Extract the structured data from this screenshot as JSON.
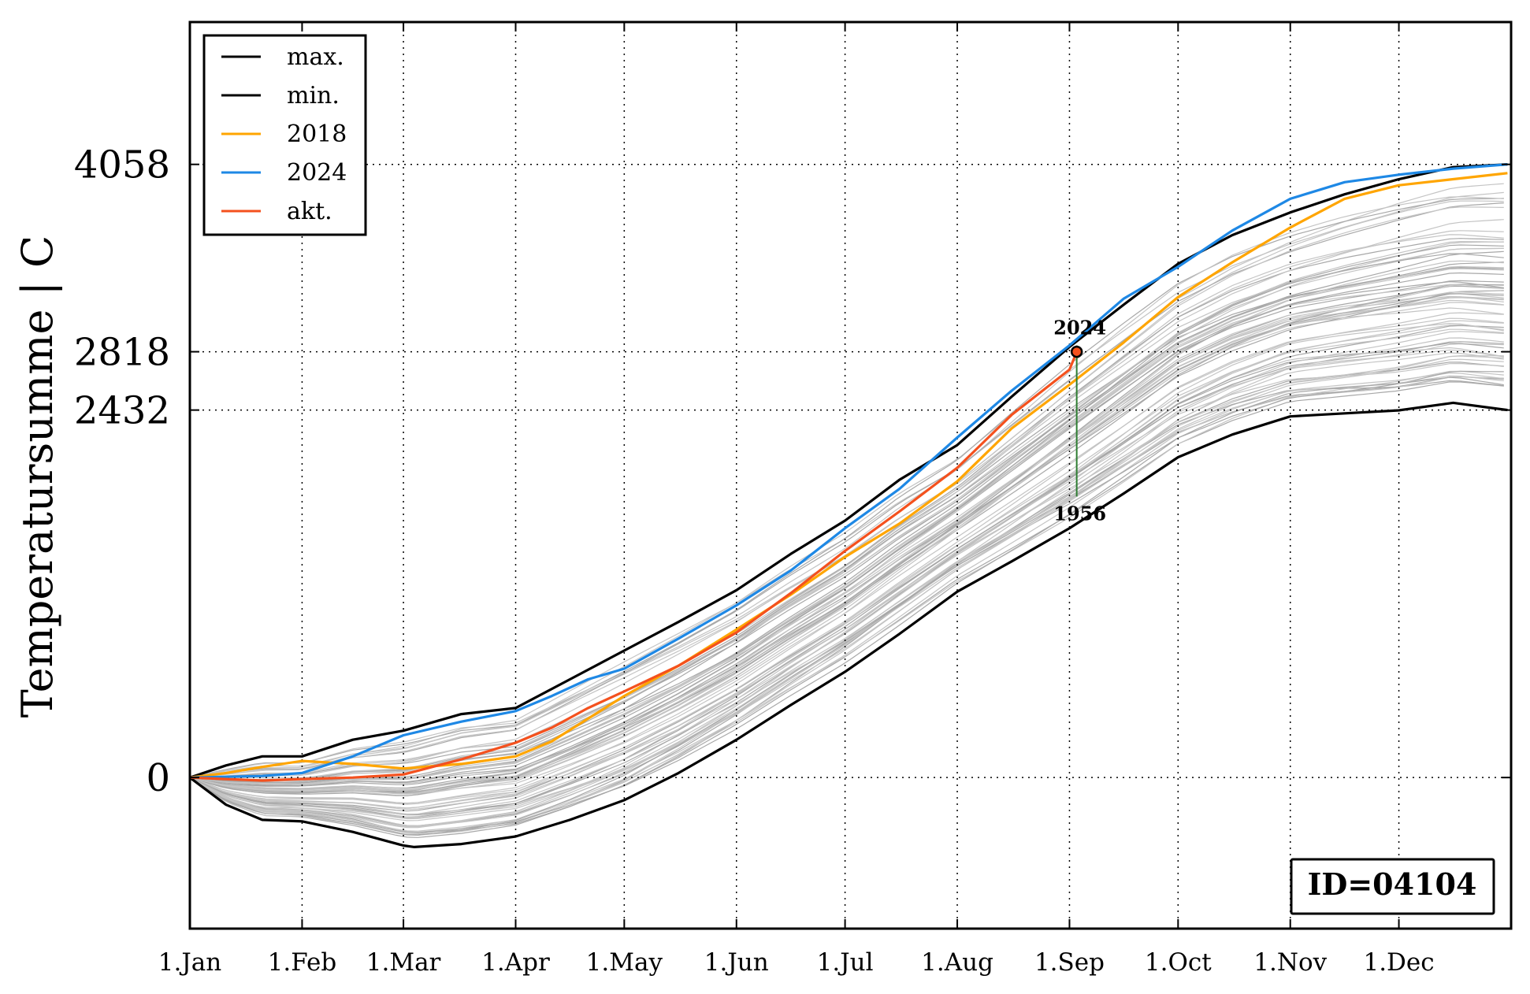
{
  "chart_data": {
    "type": "line",
    "title": "",
    "xlabel": "",
    "ylabel": "Temperatursumme | C",
    "x_ticks": [
      "1.Jan",
      "1.Feb",
      "1.Mar",
      "1.Apr",
      "1.May",
      "1.Jun",
      "1.Jul",
      "1.Aug",
      "1.Sep",
      "1.Oct",
      "1.Nov",
      "1.Dec"
    ],
    "x_tick_days": [
      0,
      31,
      59,
      90,
      120,
      151,
      181,
      212,
      243,
      273,
      304,
      334
    ],
    "x_range": [
      0,
      365
    ],
    "y_ticks": [
      {
        "value": 0,
        "label": "0"
      },
      {
        "value": 2432,
        "label": "2432"
      },
      {
        "value": 2818,
        "label": "2818"
      },
      {
        "value": 4058,
        "label": "4058"
      }
    ],
    "y_range": [
      -1000,
      5000
    ],
    "grid": true,
    "legend_placement": "top-left",
    "legend": [
      {
        "label": "max.",
        "color": "#000000"
      },
      {
        "label": "min.",
        "color": "#000000"
      },
      {
        "label": "2018",
        "color": "#ffa500"
      },
      {
        "label": "2024",
        "color": "#1e88e5"
      },
      {
        "label": "akt.",
        "color": "#f4511e"
      }
    ],
    "series": [
      {
        "name": "max.",
        "color": "#000000",
        "x": [
          0,
          10,
          20,
          31,
          45,
          59,
          75,
          90,
          105,
          120,
          135,
          151,
          166,
          181,
          196,
          212,
          227,
          243,
          258,
          273,
          288,
          304,
          319,
          334,
          349,
          364
        ],
        "y": [
          0,
          80,
          140,
          140,
          250,
          310,
          420,
          460,
          650,
          840,
          1030,
          1240,
          1480,
          1700,
          1970,
          2200,
          2520,
          2850,
          3130,
          3400,
          3590,
          3740,
          3860,
          3960,
          4040,
          4058
        ]
      },
      {
        "name": "min.",
        "color": "#000000",
        "x": [
          0,
          10,
          20,
          31,
          45,
          59,
          62,
          75,
          90,
          105,
          120,
          135,
          151,
          166,
          181,
          196,
          212,
          227,
          243,
          258,
          273,
          288,
          304,
          319,
          334,
          349,
          364
        ],
        "y": [
          0,
          -180,
          -280,
          -290,
          -360,
          -450,
          -460,
          -440,
          -390,
          -280,
          -150,
          30,
          250,
          480,
          700,
          950,
          1230,
          1430,
          1650,
          1880,
          2120,
          2270,
          2390,
          2410,
          2430,
          2480,
          2432
        ]
      },
      {
        "name": "2018",
        "color": "#ffa500",
        "x": [
          0,
          10,
          20,
          31,
          45,
          59,
          75,
          90,
          100,
          110,
          120,
          135,
          151,
          166,
          181,
          196,
          212,
          227,
          243,
          258,
          273,
          288,
          304,
          319,
          334,
          349,
          364
        ],
        "y": [
          0,
          30,
          70,
          110,
          90,
          60,
          90,
          140,
          240,
          390,
          540,
          740,
          980,
          1210,
          1460,
          1680,
          1960,
          2310,
          2600,
          2880,
          3180,
          3410,
          3640,
          3830,
          3920,
          3960,
          4000
        ]
      },
      {
        "name": "2024",
        "color": "#1e88e5",
        "x": [
          0,
          20,
          31,
          45,
          59,
          75,
          90,
          100,
          110,
          120,
          135,
          151,
          166,
          181,
          196,
          212,
          227,
          243,
          258,
          273,
          288,
          304,
          319,
          334,
          349,
          364
        ],
        "y": [
          0,
          10,
          30,
          140,
          280,
          370,
          440,
          540,
          650,
          720,
          920,
          1140,
          1370,
          1650,
          1910,
          2250,
          2560,
          2860,
          3170,
          3380,
          3620,
          3830,
          3940,
          3990,
          4030,
          4058
        ]
      },
      {
        "name": "akt.",
        "color": "#f4511e",
        "x": [
          0,
          10,
          20,
          31,
          45,
          59,
          75,
          90,
          100,
          110,
          120,
          135,
          151,
          166,
          181,
          196,
          212,
          227,
          243,
          245
        ],
        "y": [
          0,
          -10,
          -20,
          -10,
          0,
          20,
          120,
          230,
          330,
          460,
          570,
          740,
          960,
          1220,
          1500,
          1760,
          2050,
          2400,
          2700,
          2818
        ]
      }
    ],
    "marker": {
      "x": 245,
      "y": 2818
    },
    "annotations": [
      {
        "text": "2024",
        "x": 245,
        "y": 2860,
        "position": "above"
      },
      {
        "text": "1956",
        "x": 245,
        "y": 1860,
        "position": "below"
      }
    ],
    "info_box": "ID=04104"
  }
}
